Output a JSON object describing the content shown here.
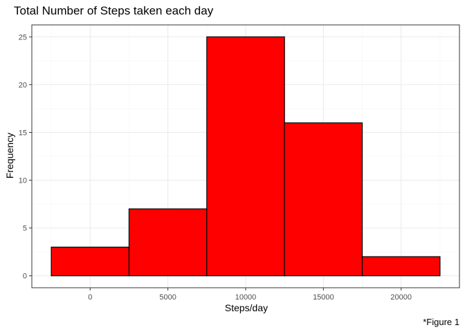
{
  "chart_data": {
    "type": "bar",
    "subtype": "histogram",
    "title": "Total Number of Steps taken each day",
    "xlabel": "Steps/day",
    "ylabel": "Frequency",
    "caption": "*Figure 1",
    "xlim": [
      -3750,
      23750
    ],
    "ylim": [
      -1.25,
      26.25
    ],
    "x_ticks": [
      0,
      5000,
      10000,
      15000,
      20000
    ],
    "y_ticks": [
      0,
      5,
      10,
      15,
      20,
      25
    ],
    "bins": [
      {
        "start": -2500,
        "end": 2500,
        "count": 3
      },
      {
        "start": 2500,
        "end": 7500,
        "count": 7
      },
      {
        "start": 7500,
        "end": 12500,
        "count": 25
      },
      {
        "start": 12500,
        "end": 17500,
        "count": 16
      },
      {
        "start": 17500,
        "end": 22500,
        "count": 2
      }
    ],
    "grid": true,
    "colors": {
      "fill": "#ff0000",
      "outline": "#000000",
      "grid_major": "#ebebeb",
      "grid_minor": "#f5f5f5",
      "panel_border": "#333333",
      "tick_text": "#4d4d4d"
    }
  }
}
